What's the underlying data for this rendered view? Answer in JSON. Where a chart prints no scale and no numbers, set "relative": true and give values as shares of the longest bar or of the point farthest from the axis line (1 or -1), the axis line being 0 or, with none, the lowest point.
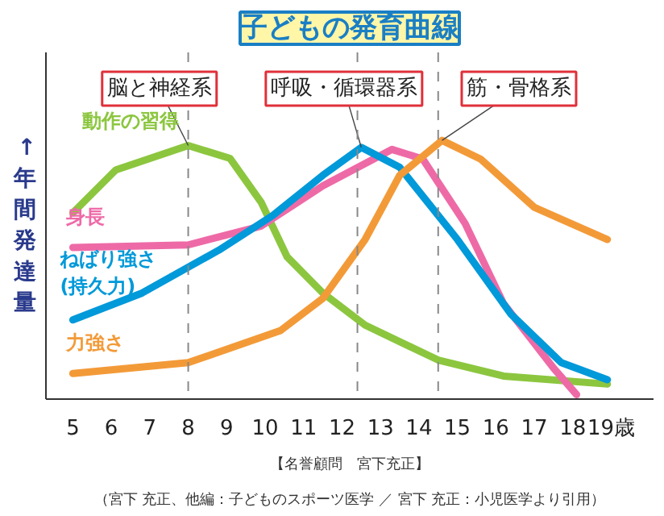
{
  "chart_data": {
    "type": "line",
    "title": "子どもの発育曲線",
    "ylabel": "↑年間発達量",
    "relative": true,
    "grid": false,
    "marker": "none",
    "line_style": "solid",
    "xlim": [
      4.3,
      20.1
    ],
    "xticks": [
      5,
      6,
      7,
      8,
      9,
      10,
      11,
      12,
      13,
      14,
      15,
      16,
      17,
      18,
      {
        "value": 19,
        "label": "19歳"
      }
    ],
    "series": [
      {
        "name": "動作の習得",
        "color": "#8cc63f",
        "x": [
          5,
          6.12,
          8.0,
          9.09,
          9.9,
          10.57,
          11.5,
          12.6,
          14.5,
          16.2,
          18.9
        ],
        "values": [
          0.72,
          0.886,
          0.98,
          0.93,
          0.76,
          0.55,
          0.41,
          0.286,
          0.151,
          0.089,
          0.058
        ]
      },
      {
        "name": "身長",
        "color": "#ee6aa7",
        "x": [
          5,
          8.0,
          9.9,
          11.5,
          13.3,
          14.1,
          15.2,
          16.2,
          17.5,
          18.1
        ],
        "values": [
          0.586,
          0.596,
          0.669,
          0.824,
          0.965,
          0.928,
          0.679,
          0.369,
          0.12,
          0.017
        ]
      },
      {
        "name": "ねばり強さ\n(持久力)",
        "color": "#0099d9",
        "x": [
          5,
          6.8,
          8.8,
          10.2,
          11.5,
          12.5,
          13.5,
          15.0,
          16.4,
          17.7,
          18.9
        ],
        "values": [
          0.306,
          0.41,
          0.576,
          0.71,
          0.865,
          0.973,
          0.896,
          0.617,
          0.327,
          0.141,
          0.075
        ]
      },
      {
        "name": "力強さ",
        "color": "#f39a38",
        "x": [
          5,
          8.0,
          10.4,
          11.5,
          12.6,
          13.5,
          14.6,
          15.6,
          17.0,
          18.9
        ],
        "values": [
          0.099,
          0.141,
          0.265,
          0.389,
          0.617,
          0.865,
          1.0,
          0.928,
          0.741,
          0.617
        ]
      }
    ],
    "ref_lines": [
      {
        "axis": "x",
        "value": 8,
        "color": "#888888",
        "line_style": "dashed"
      },
      {
        "axis": "x",
        "value": 12.4,
        "color": "#888888",
        "line_style": "dashed"
      },
      {
        "axis": "x",
        "value": 14.5,
        "color": "#888888",
        "line_style": "dashed"
      }
    ],
    "annotations": [
      {
        "text": "脳と神経系",
        "x": 8.0,
        "y": 0.98
      },
      {
        "text": "呼吸・循環器系",
        "x": 12.5,
        "y": 0.973
      },
      {
        "text": "筋・骨格系",
        "x": 14.6,
        "y": 1.0
      },
      "【名誉顧問　宮下充正】",
      "（宮下 充正、他編：子どものスポーツ医学 ／ 宮下 充正：小児医学より引用）"
    ]
  }
}
